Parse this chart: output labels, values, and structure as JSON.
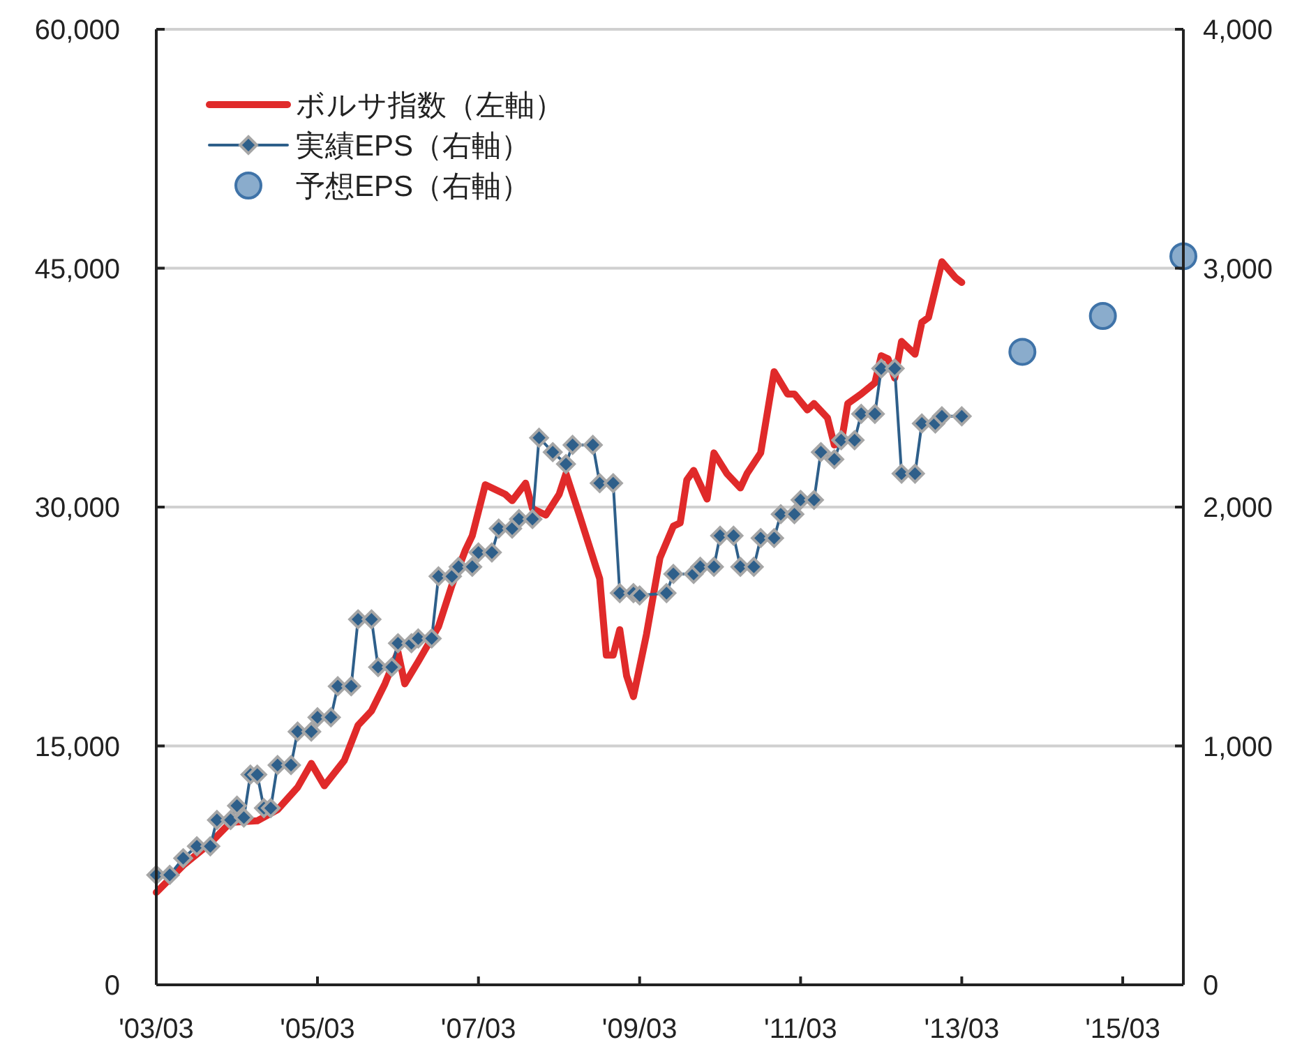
{
  "chart_data": {
    "type": "line",
    "xlim": [
      "2003-03",
      "2015-12"
    ],
    "xticks": [
      {
        "value": "2003-03",
        "label": "'03/03"
      },
      {
        "value": "2005-03",
        "label": "'05/03"
      },
      {
        "value": "2007-03",
        "label": "'07/03"
      },
      {
        "value": "2009-03",
        "label": "'09/03"
      },
      {
        "value": "2011-03",
        "label": "'11/03"
      },
      {
        "value": "2013-03",
        "label": "'13/03"
      },
      {
        "value": "2015-03",
        "label": "'15/03"
      }
    ],
    "ylim": [
      0,
      60000
    ],
    "yticks": [
      {
        "value": 0,
        "label": "0"
      },
      {
        "value": 15000,
        "label": "15,000"
      },
      {
        "value": 30000,
        "label": "30,000"
      },
      {
        "value": 45000,
        "label": "45,000"
      },
      {
        "value": 60000,
        "label": "60,000"
      }
    ],
    "y2lim": [
      0,
      4000
    ],
    "y2ticks": [
      {
        "value": 0,
        "label": "0"
      },
      {
        "value": 1000,
        "label": "1,000"
      },
      {
        "value": 2000,
        "label": "2,000"
      },
      {
        "value": 3000,
        "label": "3,000"
      },
      {
        "value": 4000,
        "label": "4,000"
      }
    ],
    "grid": "y",
    "legend": "top left",
    "series": [
      {
        "name": "ボルサ指数（左軸）",
        "color": "#e02a2a",
        "marker": "none",
        "x": [
          "2003-03",
          "2003-07",
          "2003-11",
          "2004-02",
          "2004-06",
          "2004-09",
          "2004-12",
          "2005-02",
          "2005-04",
          "2005-07",
          "2005-09",
          "2005-11",
          "2006-01",
          "2006-03",
          "2006-04",
          "2006-06",
          "2006-09",
          "2006-11",
          "2007-01",
          "2007-02",
          "2007-04",
          "2007-07",
          "2007-08",
          "2007-10",
          "2007-11",
          "2008-01",
          "2008-03",
          "2008-04",
          "2008-06",
          "2008-09",
          "2008-10",
          "2008-11",
          "2008-12",
          "2009-01",
          "2009-02",
          "2009-04",
          "2009-06",
          "2009-08",
          "2009-09",
          "2009-10",
          "2009-11",
          "2010-01",
          "2010-02",
          "2010-04",
          "2010-06",
          "2010-07",
          "2010-09",
          "2010-10",
          "2010-11",
          "2011-01",
          "2011-02",
          "2011-04",
          "2011-05",
          "2011-07",
          "2011-08",
          "2011-09",
          "2011-10",
          "2011-12",
          "2012-02",
          "2012-03",
          "2012-04",
          "2012-05",
          "2012-06",
          "2012-08",
          "2012-09",
          "2012-10",
          "2012-12",
          "2013-02",
          "2013-03"
        ],
        "values": [
          5800,
          7500,
          8900,
          10200,
          10300,
          11000,
          12400,
          13900,
          12500,
          14100,
          16300,
          17200,
          18900,
          20900,
          18900,
          20300,
          22500,
          25100,
          27300,
          28200,
          31400,
          30800,
          30400,
          31500,
          29900,
          29500,
          30800,
          32100,
          29500,
          25500,
          20700,
          20700,
          22300,
          19400,
          18100,
          22000,
          26800,
          28800,
          29000,
          31700,
          32300,
          30500,
          33400,
          32100,
          31200,
          32100,
          33400,
          35900,
          38500,
          37100,
          37100,
          36100,
          36500,
          35600,
          33900,
          34000,
          36500,
          37100,
          37800,
          39500,
          39300,
          38100,
          40400,
          39600,
          41600,
          41900,
          45400,
          44400,
          44100
        ]
      },
      {
        "name": "実績EPS（右軸）",
        "axis": "y2",
        "color": "#2e5f8a",
        "marker": "diamond",
        "x": [
          "2003-03",
          "2003-05",
          "2003-07",
          "2003-09",
          "2003-11",
          "2003-12",
          "2004-02",
          "2004-03",
          "2004-04",
          "2004-05",
          "2004-06",
          "2004-07",
          "2004-08",
          "2004-09",
          "2004-11",
          "2004-12",
          "2005-02",
          "2005-03",
          "2005-05",
          "2005-06",
          "2005-08",
          "2005-09",
          "2005-11",
          "2005-12",
          "2006-02",
          "2006-03",
          "2006-05",
          "2006-06",
          "2006-08",
          "2006-09",
          "2006-11",
          "2006-12",
          "2007-02",
          "2007-03",
          "2007-05",
          "2007-06",
          "2007-08",
          "2007-09",
          "2007-11",
          "2007-12",
          "2008-02",
          "2008-04",
          "2008-05",
          "2008-08",
          "2008-09",
          "2008-11",
          "2008-12",
          "2009-02",
          "2009-03",
          "2009-07",
          "2009-08",
          "2009-11",
          "2009-12",
          "2010-02",
          "2010-03",
          "2010-05",
          "2010-06",
          "2010-08",
          "2010-09",
          "2010-11",
          "2010-12",
          "2011-02",
          "2011-03",
          "2011-05",
          "2011-06",
          "2011-08",
          "2011-09",
          "2011-11",
          "2011-12",
          "2012-02",
          "2012-03",
          "2012-05",
          "2012-06",
          "2012-08",
          "2012-09",
          "2012-11",
          "2012-12",
          "2013-03"
        ],
        "values": [
          460,
          460,
          530,
          580,
          580,
          690,
          690,
          750,
          700,
          880,
          880,
          740,
          740,
          920,
          920,
          1060,
          1060,
          1120,
          1120,
          1250,
          1250,
          1530,
          1530,
          1330,
          1330,
          1430,
          1430,
          1450,
          1450,
          1710,
          1710,
          1750,
          1750,
          1810,
          1810,
          1910,
          1910,
          1950,
          1950,
          2290,
          2230,
          2180,
          2260,
          2260,
          2100,
          2100,
          1640,
          1640,
          1630,
          1640,
          1720,
          1720,
          1750,
          1750,
          1880,
          1880,
          1750,
          1750,
          1870,
          1870,
          1970,
          1970,
          2030,
          2030,
          2230,
          2200,
          2280,
          2280,
          2390,
          2390,
          2580,
          2580,
          2140,
          2140,
          2350,
          2350,
          2380,
          2380
        ]
      },
      {
        "name": "予想EPS（右軸）",
        "type": "scatter",
        "axis": "y2",
        "color": "#8aaccc",
        "marker": "circle",
        "x": [
          "2013-12",
          "2014-12",
          "2015-12"
        ],
        "values": [
          2650,
          2800,
          3050
        ]
      }
    ]
  }
}
